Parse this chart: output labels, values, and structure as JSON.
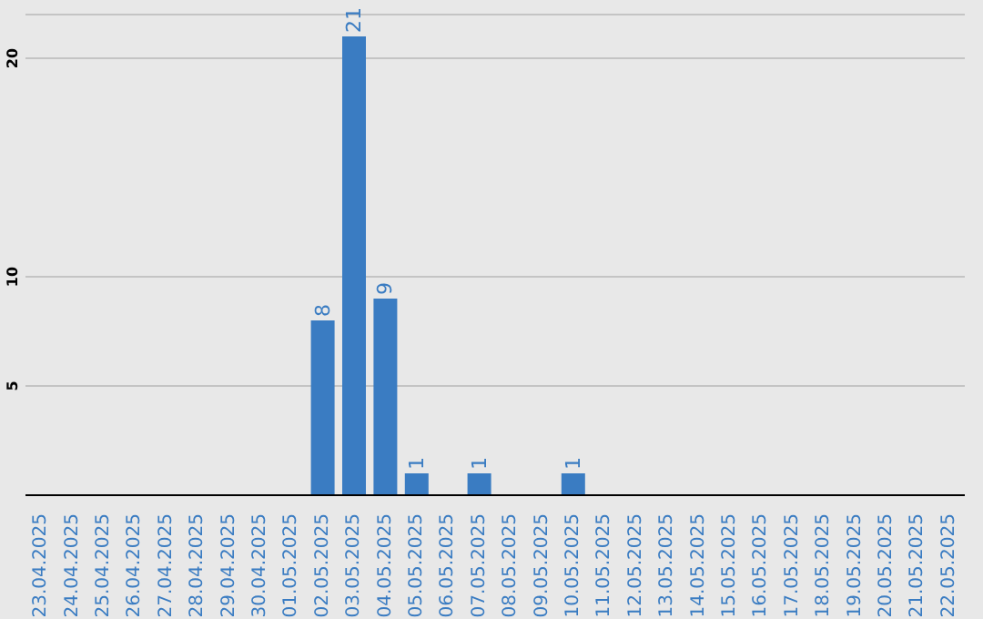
{
  "chart_data": {
    "type": "bar",
    "categories": [
      "23.04.2025",
      "24.04.2025",
      "25.04.2025",
      "26.04.2025",
      "27.04.2025",
      "28.04.2025",
      "29.04.2025",
      "30.04.2025",
      "01.05.2025",
      "02.05.2025",
      "03.05.2025",
      "04.05.2025",
      "05.05.2025",
      "06.05.2025",
      "07.05.2025",
      "08.05.2025",
      "09.05.2025",
      "10.05.2025",
      "11.05.2025",
      "12.05.2025",
      "13.05.2025",
      "14.05.2025",
      "15.05.2025",
      "16.05.2025",
      "17.05.2025",
      "18.05.2025",
      "19.05.2025",
      "20.05.2025",
      "21.05.2025",
      "22.05.2025"
    ],
    "values": [
      0,
      0,
      0,
      0,
      0,
      0,
      0,
      0,
      0,
      8,
      21,
      9,
      1,
      0,
      1,
      0,
      0,
      1,
      0,
      0,
      0,
      0,
      0,
      0,
      0,
      0,
      0,
      0,
      0,
      0
    ],
    "value_labels": [
      null,
      null,
      null,
      null,
      null,
      null,
      null,
      null,
      null,
      "8",
      "21",
      "9",
      "1",
      null,
      "1",
      null,
      null,
      "1",
      null,
      null,
      null,
      null,
      null,
      null,
      null,
      null,
      null,
      null,
      null,
      null
    ],
    "color": "#3a7cc2",
    "ylim": [
      0,
      22
    ],
    "yticks": [
      5,
      10,
      20
    ],
    "grid": "y"
  }
}
